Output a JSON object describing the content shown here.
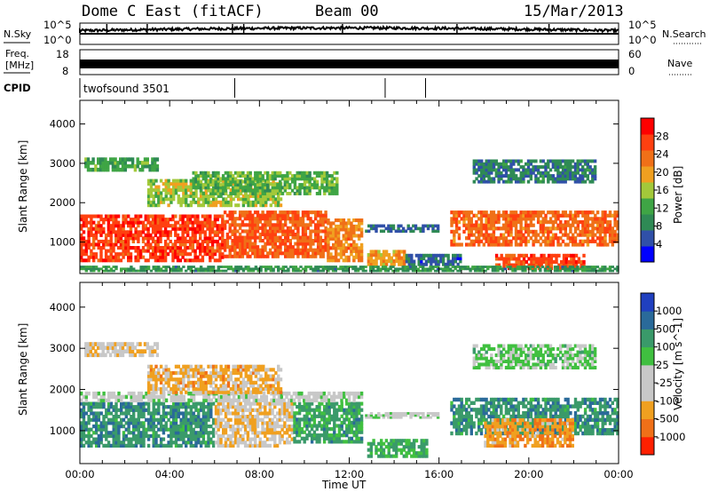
{
  "header": {
    "station": "Dome C East (fitACF)",
    "beam": "Beam 00",
    "date": "15/Mar/2013"
  },
  "panels": {
    "nsky": {
      "left_label": "N.Sky",
      "right_label": "N.Search",
      "ticks": [
        "10^5",
        "10^0"
      ],
      "right_ticks": [
        "10^5",
        "10^0"
      ]
    },
    "freq": {
      "left_label_1": "Freq.",
      "left_label_2": "[MHz]",
      "right_label": "Nave",
      "ticks": [
        "18",
        "8"
      ],
      "right_ticks": [
        "60",
        "0"
      ]
    },
    "cpid": {
      "left_label": "CPID",
      "program": "twofsound 3501"
    }
  },
  "colors": {
    "power": [
      "#0000ff",
      "#3050a8",
      "#2f8a55",
      "#3fa545",
      "#a3c93a",
      "#f0a020",
      "#f07018",
      "#ff4010",
      "#ff0000"
    ],
    "velocity": [
      "#2040c0",
      "#2a6a9a",
      "#3a9a6a",
      "#40c040",
      "#c8c8c8",
      "#c8c8c8",
      "#f0a020",
      "#f07018",
      "#ff2000"
    ],
    "axis": "#000000"
  },
  "chart_data": [
    {
      "type": "heatmap",
      "name": "power",
      "ylabel": "Slant Range [km]",
      "yticks": [
        "1000",
        "2000",
        "3000",
        "4000"
      ],
      "ylim": [
        200,
        4600
      ],
      "xlim": [
        0,
        24
      ],
      "colorbar": {
        "label": "Power [dB]",
        "range": [
          0,
          32
        ],
        "ticks": [
          "4",
          "8",
          "12",
          "16",
          "20",
          "24",
          "28"
        ]
      },
      "regions": [
        {
          "x": [
            0.0,
            6.4
          ],
          "y": [
            500,
            1700
          ],
          "v": 27
        },
        {
          "x": [
            6.4,
            11.0
          ],
          "y": [
            600,
            1800
          ],
          "v": 25
        },
        {
          "x": [
            11.0,
            12.6
          ],
          "y": [
            500,
            1600
          ],
          "v": 22
        },
        {
          "x": [
            0.2,
            3.5
          ],
          "y": [
            2800,
            3150
          ],
          "v": 12
        },
        {
          "x": [
            3.0,
            9.0
          ],
          "y": [
            1900,
            2600
          ],
          "v": 16
        },
        {
          "x": [
            5.0,
            11.5
          ],
          "y": [
            2200,
            2800
          ],
          "v": 13
        },
        {
          "x": [
            12.7,
            16.0
          ],
          "y": [
            1250,
            1450
          ],
          "v": 7
        },
        {
          "x": [
            12.8,
            14.5
          ],
          "y": [
            400,
            800
          ],
          "v": 20
        },
        {
          "x": [
            14.5,
            17.0
          ],
          "y": [
            400,
            700
          ],
          "v": 6
        },
        {
          "x": [
            16.5,
            24.0
          ],
          "y": [
            900,
            1800
          ],
          "v": 24
        },
        {
          "x": [
            18.5,
            22.5
          ],
          "y": [
            300,
            700
          ],
          "v": 26
        },
        {
          "x": [
            17.5,
            23.0
          ],
          "y": [
            2500,
            3100
          ],
          "v": 8
        },
        {
          "x": [
            0.0,
            24.0
          ],
          "y": [
            250,
            400
          ],
          "v": 10
        }
      ]
    },
    {
      "type": "heatmap",
      "name": "velocity",
      "ylabel": "Slant Range [km]",
      "xlabel": "Time UT",
      "xticks": [
        "00:00",
        "04:00",
        "08:00",
        "12:00",
        "16:00",
        "20:00",
        "00:00"
      ],
      "yticks": [
        "1000",
        "2000",
        "3000",
        "4000"
      ],
      "ylim": [
        200,
        4600
      ],
      "xlim": [
        0,
        24
      ],
      "colorbar": {
        "label": "Velocity [m s^-1]",
        "ticks": [
          "1000",
          "500",
          "100",
          "25",
          "-25",
          "-100",
          "-500",
          "-1000"
        ]
      },
      "regions": [
        {
          "x": [
            0.0,
            6.0
          ],
          "y": [
            600,
            1700
          ],
          "v": 0.55
        },
        {
          "x": [
            6.0,
            9.5
          ],
          "y": [
            600,
            1700
          ],
          "v": -0.35
        },
        {
          "x": [
            9.5,
            12.6
          ],
          "y": [
            700,
            1700
          ],
          "v": 0.45
        },
        {
          "x": [
            0.0,
            12.6
          ],
          "y": [
            1700,
            1950
          ],
          "v": 0.0
        },
        {
          "x": [
            0.2,
            3.5
          ],
          "y": [
            2800,
            3150
          ],
          "v": -0.3
        },
        {
          "x": [
            3.0,
            9.0
          ],
          "y": [
            1900,
            2600
          ],
          "v": -0.45
        },
        {
          "x": [
            12.8,
            15.5
          ],
          "y": [
            350,
            800
          ],
          "v": 0.4
        },
        {
          "x": [
            12.7,
            16.0
          ],
          "y": [
            1300,
            1450
          ],
          "v": 0.0
        },
        {
          "x": [
            16.5,
            24.0
          ],
          "y": [
            900,
            1800
          ],
          "v": 0.55
        },
        {
          "x": [
            18.0,
            22.0
          ],
          "y": [
            600,
            1300
          ],
          "v": -0.55
        },
        {
          "x": [
            17.5,
            23.0
          ],
          "y": [
            2500,
            3100
          ],
          "v": 0.2
        }
      ]
    }
  ],
  "cpid_markers_ut": [
    6.9,
    13.6,
    15.4
  ],
  "nsky_spikes_ut": [
    1.2,
    3.0,
    6.8,
    7.3,
    11.7,
    16.8,
    20.9
  ]
}
